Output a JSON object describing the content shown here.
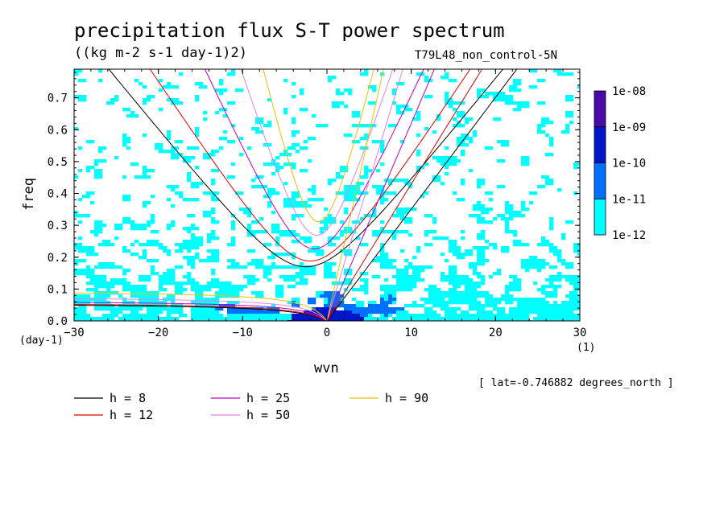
{
  "chart_data": {
    "type": "heatmap",
    "title": "precipitation flux S-T power spectrum",
    "units": "((kg m-2 s-1 day-1)2)",
    "run_label": "T79L48_non_control-5N",
    "xlabel": "wvn",
    "ylabel": "freq",
    "x_unit": "(1)",
    "y_unit": "(day-1)",
    "xlim": [
      -30,
      30
    ],
    "ylim": [
      0.0,
      0.79
    ],
    "x_ticks": [
      -30,
      -20,
      -10,
      0,
      10,
      20,
      30
    ],
    "y_ticks": [
      0.0,
      0.1,
      0.2,
      0.3,
      0.4,
      0.5,
      0.6,
      0.7
    ],
    "y_tick_labels": [
      "0.0",
      "0.1",
      "0.2",
      "0.3",
      "0.4",
      "0.5",
      "0.6",
      "0.7"
    ],
    "colorbar": {
      "levels": [
        "1e-12",
        "1e-11",
        "1e-10",
        "1e-09",
        "1e-08"
      ],
      "colors": [
        "#00ffff",
        "#0070ff",
        "#0016c8",
        "#4b0aa8"
      ]
    },
    "note": "[ lat=-0.746882 degrees_north ]",
    "dispersion_curves": [
      {
        "h": 8,
        "label": "h =  8",
        "color": "#000000"
      },
      {
        "h": 12,
        "label": "h = 12",
        "color": "#e00000"
      },
      {
        "h": 25,
        "label": "h = 25",
        "color": "#c000c0"
      },
      {
        "h": 50,
        "label": "h = 50",
        "color": "#dd88dd"
      },
      {
        "h": 90,
        "label": "h = 90",
        "color": "#f0c000"
      }
    ]
  }
}
